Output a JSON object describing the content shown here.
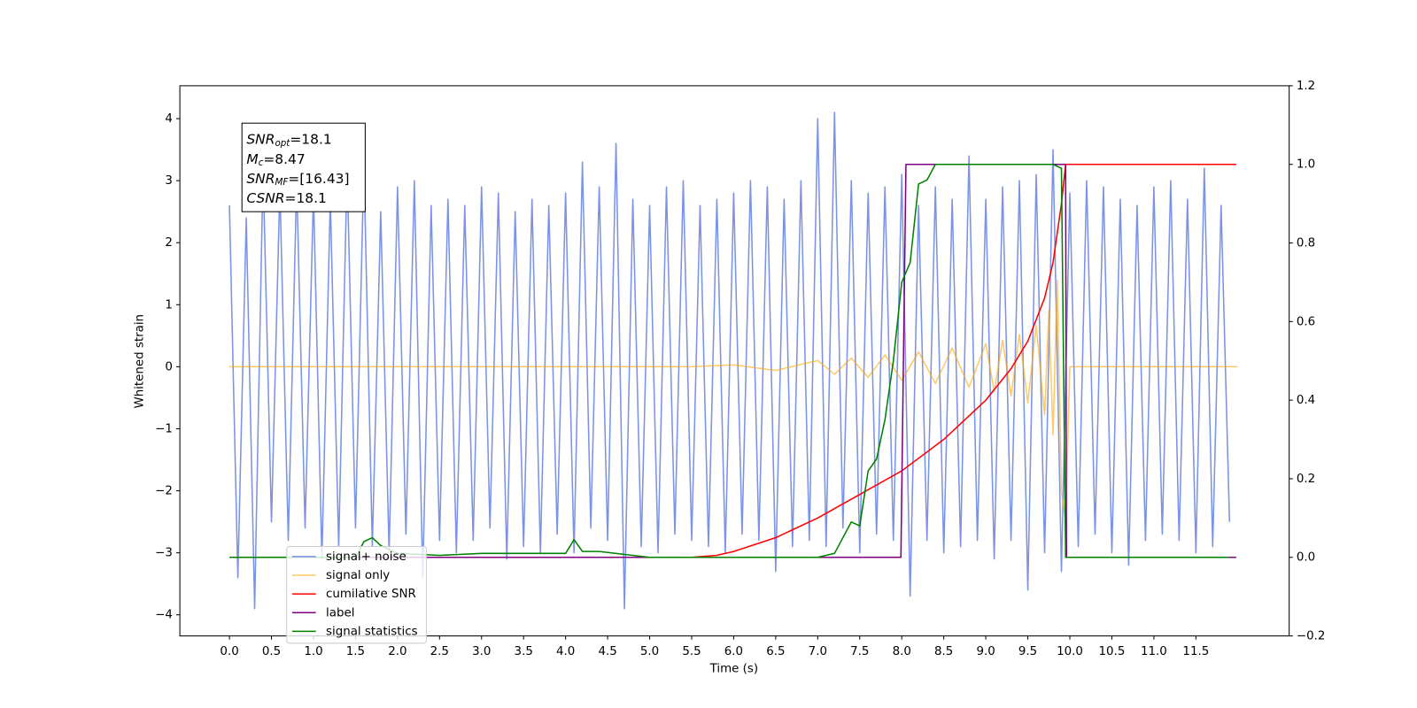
{
  "chart_data": {
    "type": "line",
    "xlabel": "Time (s)",
    "ylabel": "Whitened strain",
    "xlim": [
      -0.59,
      12.61
    ],
    "ylim": [
      -4.34,
      4.53
    ],
    "y2lim": [
      -0.2,
      1.2
    ],
    "xticks": [
      {
        "value": 0,
        "label": "0.0"
      },
      {
        "value": 0.5,
        "label": "0.5"
      },
      {
        "value": 1,
        "label": "1.0"
      },
      {
        "value": 1.5,
        "label": "1.5"
      },
      {
        "value": 2,
        "label": "2.0"
      },
      {
        "value": 2.5,
        "label": "2.5"
      },
      {
        "value": 3,
        "label": "3.0"
      },
      {
        "value": 3.5,
        "label": "3.5"
      },
      {
        "value": 4,
        "label": "4.0"
      },
      {
        "value": 4.5,
        "label": "4.5"
      },
      {
        "value": 5,
        "label": "5.0"
      },
      {
        "value": 5.5,
        "label": "5.5"
      },
      {
        "value": 6,
        "label": "6.0"
      },
      {
        "value": 6.5,
        "label": "6.5"
      },
      {
        "value": 7,
        "label": "7.0"
      },
      {
        "value": 7.5,
        "label": "7.5"
      },
      {
        "value": 8,
        "label": "8.0"
      },
      {
        "value": 8.5,
        "label": "8.5"
      },
      {
        "value": 9,
        "label": "9.0"
      },
      {
        "value": 9.5,
        "label": "9.5"
      },
      {
        "value": 10,
        "label": "10.0"
      },
      {
        "value": 10.5,
        "label": "10.5"
      },
      {
        "value": 11,
        "label": "11.0"
      },
      {
        "value": 11.5,
        "label": "11.5"
      }
    ],
    "yticks": [
      {
        "value": -4,
        "label": "−4"
      },
      {
        "value": -3,
        "label": "−3"
      },
      {
        "value": -2,
        "label": "−2"
      },
      {
        "value": -1,
        "label": "−1"
      },
      0,
      1,
      2,
      3,
      4
    ],
    "y2ticks": [
      {
        "value": -0.2,
        "label": "−0.2"
      },
      {
        "value": 0,
        "label": "0.0"
      },
      {
        "value": 0.2,
        "label": "0.2"
      },
      {
        "value": 0.4,
        "label": "0.4"
      },
      {
        "value": 0.6,
        "label": "0.6"
      },
      {
        "value": 0.8,
        "label": "0.8"
      },
      {
        "value": 1,
        "label": "1.0"
      },
      {
        "value": 1.2,
        "label": "1.2"
      }
    ],
    "grid": false,
    "legend": "lower left",
    "annotation": [
      {
        "base": "SNR",
        "sub": "opt",
        "text": "=18.1"
      },
      {
        "base": "M",
        "sub": "c",
        "text": "=8.47"
      },
      {
        "base": "SNR",
        "sub": "MF",
        "text": "=[16.43]"
      },
      {
        "base": "CSNR",
        "text": "=18.1"
      }
    ],
    "series": [
      {
        "name": "signal+ noise",
        "color": "#7b93e6",
        "x": [
          0,
          0.1,
          0.2,
          0.3,
          0.4,
          0.5,
          0.6,
          0.7,
          0.8,
          0.9,
          1,
          1.1,
          1.2,
          1.3,
          1.4,
          1.5,
          1.6,
          1.7,
          1.8,
          1.9,
          2,
          2.1,
          2.2,
          2.3,
          2.4,
          2.5,
          2.6,
          2.7,
          2.8,
          2.9,
          3,
          3.1,
          3.2,
          3.3,
          3.4,
          3.5,
          3.6,
          3.7,
          3.8,
          3.9,
          4,
          4.1,
          4.2,
          4.3,
          4.4,
          4.5,
          4.6,
          4.7,
          4.8,
          4.9,
          5,
          5.1,
          5.2,
          5.3,
          5.4,
          5.5,
          5.6,
          5.7,
          5.8,
          5.9,
          6,
          6.1,
          6.2,
          6.3,
          6.4,
          6.5,
          6.6,
          6.7,
          6.8,
          6.9,
          7,
          7.1,
          7.2,
          7.3,
          7.4,
          7.5,
          7.6,
          7.7,
          7.8,
          7.9,
          8,
          8.1,
          8.2,
          8.3,
          8.4,
          8.5,
          8.6,
          8.7,
          8.8,
          8.9,
          9,
          9.1,
          9.2,
          9.3,
          9.4,
          9.5,
          9.6,
          9.7,
          9.8,
          9.9,
          10,
          10.1,
          10.2,
          10.3,
          10.4,
          10.5,
          10.6,
          10.7,
          10.8,
          10.9,
          11,
          11.1,
          11.2,
          11.3,
          11.4,
          11.5,
          11.6,
          11.7,
          11.8,
          11.9
        ],
        "values": [
          2.6,
          -3.4,
          2.4,
          -3.9,
          3.2,
          -2.5,
          2.9,
          -2.8,
          3.0,
          -2.6,
          2.8,
          -3.1,
          2.7,
          -2.9,
          3.2,
          -2.6,
          3.3,
          -2.9,
          2.5,
          -3.0,
          2.9,
          -2.7,
          3.0,
          -3.4,
          2.6,
          -2.8,
          2.7,
          -3.0,
          2.6,
          -2.8,
          2.9,
          -2.6,
          2.8,
          -3.1,
          2.5,
          -2.9,
          2.7,
          -3.0,
          2.6,
          -2.7,
          2.8,
          -3.0,
          3.3,
          -2.6,
          2.9,
          -2.8,
          3.6,
          -3.9,
          2.7,
          -2.9,
          2.6,
          -3.0,
          2.9,
          -2.7,
          3.0,
          -2.8,
          2.6,
          -2.9,
          2.7,
          -3.0,
          2.8,
          -2.7,
          3.0,
          -2.8,
          2.9,
          -3.3,
          2.7,
          -2.9,
          3.0,
          -2.8,
          4.0,
          -2.9,
          4.1,
          -2.6,
          3.0,
          -3.0,
          2.8,
          -2.7,
          2.9,
          -2.8,
          3.1,
          -3.7,
          2.6,
          -2.8,
          2.9,
          -3.0,
          2.7,
          -2.9,
          3.4,
          -2.8,
          2.7,
          -3.1,
          2.9,
          -2.8,
          3.0,
          -3.6,
          3.1,
          -3.0,
          3.5,
          -3.3,
          2.8,
          -2.9,
          3.0,
          -2.7,
          2.9,
          -3.0,
          2.7,
          -3.2,
          2.6,
          -2.8,
          2.9,
          -2.7,
          3.0,
          -2.8,
          2.7,
          -3.0,
          3.2,
          -2.9,
          2.6,
          -2.5
        ]
      },
      {
        "name": "signal only",
        "color": "#ffa500",
        "x": [
          0,
          5.5,
          6.0,
          6.5,
          7.0,
          7.2,
          7.4,
          7.6,
          7.8,
          8.0,
          8.2,
          8.4,
          8.6,
          8.8,
          9.0,
          9.1,
          9.2,
          9.3,
          9.4,
          9.5,
          9.6,
          9.7,
          9.75,
          9.8,
          9.85,
          9.9,
          9.95,
          10.0,
          12.0
        ],
        "values": [
          0,
          0,
          0.03,
          -0.06,
          0.1,
          -0.12,
          0.14,
          -0.17,
          0.19,
          -0.22,
          0.24,
          -0.27,
          0.3,
          -0.33,
          0.37,
          -0.4,
          0.43,
          -0.47,
          0.52,
          -0.58,
          0.66,
          -0.78,
          0.9,
          -1.1,
          1.4,
          -2.0,
          -2.5,
          0,
          0
        ]
      },
      {
        "name": "cumilative SNR",
        "color": "#ff0000",
        "axis": "y2",
        "x": [
          0,
          5.5,
          5.8,
          6.0,
          6.5,
          7.0,
          7.5,
          8.0,
          8.5,
          9.0,
          9.3,
          9.5,
          9.7,
          9.8,
          9.9,
          9.95,
          10.0,
          11.98
        ],
        "values": [
          0,
          0,
          0.005,
          0.015,
          0.05,
          0.1,
          0.16,
          0.22,
          0.3,
          0.4,
          0.48,
          0.55,
          0.66,
          0.75,
          0.9,
          1.0,
          1.0,
          1.0
        ]
      },
      {
        "name": "label",
        "color": "#800080",
        "axis": "y2",
        "x": [
          0,
          7.99,
          8.05,
          9.95,
          9.96,
          11.98
        ],
        "values": [
          0,
          0,
          1,
          1,
          0,
          0
        ]
      },
      {
        "name": "signal statistics",
        "color": "#008000",
        "axis": "y2",
        "x": [
          0,
          1.5,
          1.6,
          1.7,
          1.8,
          2.0,
          2.5,
          3.0,
          4.0,
          4.1,
          4.2,
          4.4,
          5.0,
          7.0,
          7.2,
          7.4,
          7.5,
          7.6,
          7.7,
          7.8,
          7.9,
          8.0,
          8.1,
          8.2,
          8.3,
          8.4,
          8.5,
          9.0,
          9.8,
          9.9,
          9.95,
          10.0,
          11.9
        ],
        "values": [
          0,
          0,
          0.04,
          0.05,
          0.03,
          0.01,
          0.005,
          0.01,
          0.01,
          0.045,
          0.015,
          0.015,
          0,
          0,
          0.01,
          0.09,
          0.08,
          0.22,
          0.25,
          0.35,
          0.5,
          0.7,
          0.75,
          0.95,
          0.96,
          1.0,
          1.0,
          1.0,
          1.0,
          0.99,
          0,
          0,
          0
        ]
      }
    ]
  }
}
